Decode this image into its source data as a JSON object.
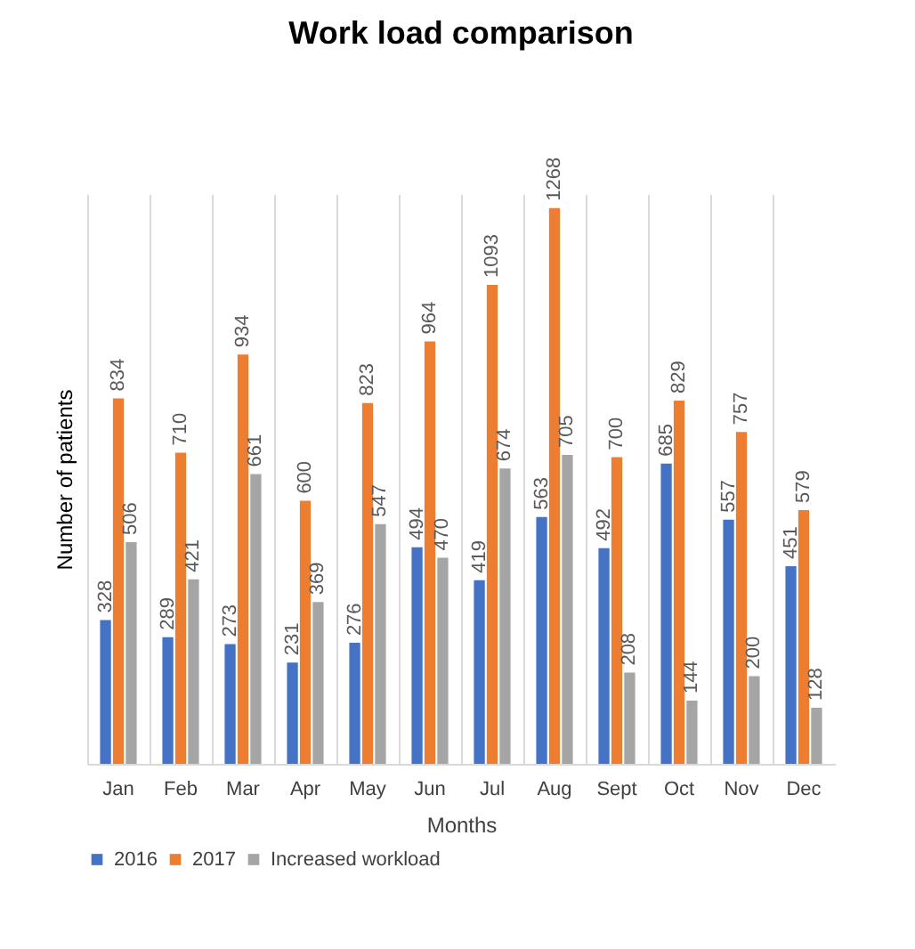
{
  "chart_data": {
    "type": "bar",
    "title": "Work load comparison",
    "xlabel": "Months",
    "ylabel": "Number of patients",
    "categories": [
      "Jan",
      "Feb",
      "Mar",
      "Apr",
      "May",
      "Jun",
      "Jul",
      "Aug",
      "Sept",
      "Oct",
      "Nov",
      "Dec"
    ],
    "series": [
      {
        "name": "2016",
        "color": "#4472c4",
        "values": [
          328,
          289,
          273,
          231,
          276,
          494,
          419,
          563,
          492,
          685,
          557,
          451
        ]
      },
      {
        "name": "2017",
        "color": "#ed7d31",
        "values": [
          834,
          710,
          934,
          600,
          823,
          964,
          1093,
          1268,
          700,
          829,
          757,
          579
        ]
      },
      {
        "name": "Increased workload",
        "color": "#a5a5a5",
        "values": [
          506,
          421,
          661,
          369,
          547,
          470,
          674,
          705,
          208,
          144,
          200,
          128
        ]
      }
    ],
    "data_labels": true,
    "grid": "x",
    "legend": "bottom",
    "tick_labels": "x"
  }
}
